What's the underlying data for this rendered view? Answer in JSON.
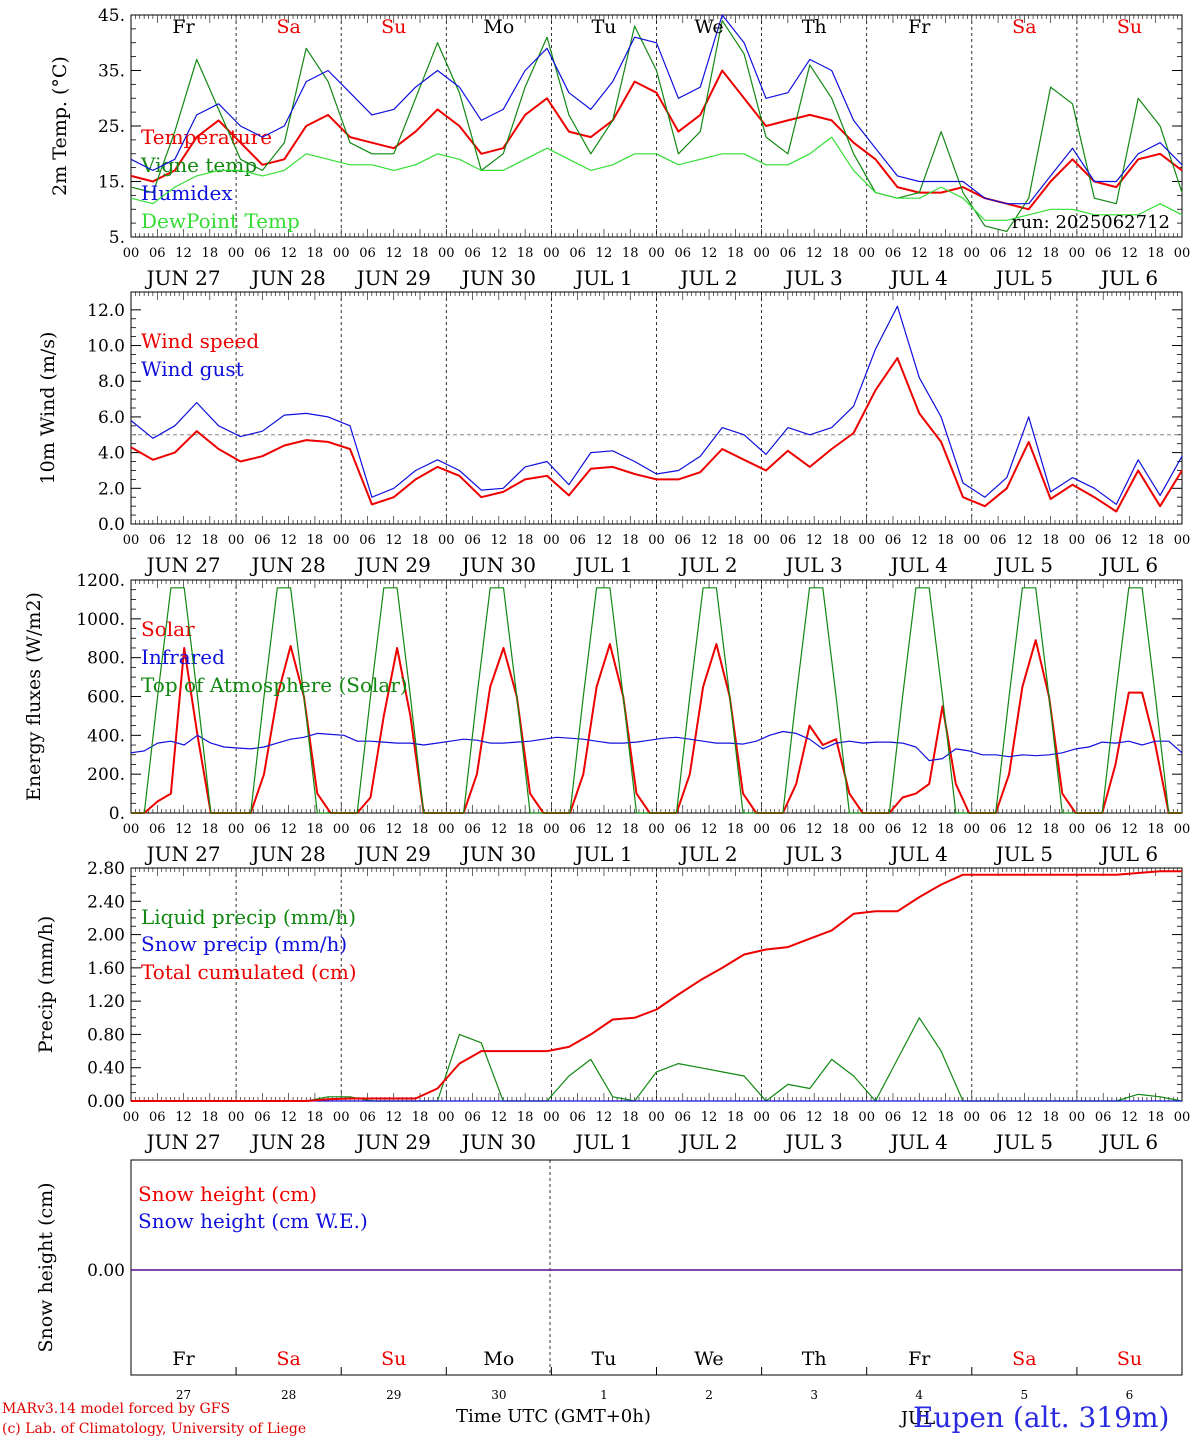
{
  "footer": {
    "credit_line1": "MARv3.14 model forced by GFS",
    "credit_line2": "(c) Lab. of Climatology, University of Liege",
    "x_title": "Time UTC (GMT+0h)",
    "station": "Eupen (alt. 319m)",
    "month_label": "JUL"
  },
  "colors": {
    "red": "#ee0000",
    "blue": "#1010dd",
    "green": "#118811",
    "lightgreen": "#33dd33",
    "weekend": "#ee0000",
    "axis": "#000000"
  },
  "days": {
    "weekday": [
      "Fr",
      "Sa",
      "Su",
      "Mo",
      "Tu",
      "We",
      "Th",
      "Fr",
      "Sa",
      "Su"
    ],
    "weekend": [
      false,
      true,
      true,
      false,
      false,
      false,
      false,
      false,
      true,
      true
    ],
    "date_labels": [
      "JUN 27",
      "JUN 28",
      "JUN 29",
      "JUN 30",
      "JUL  1",
      "JUL  2",
      "JUL  3",
      "JUL  4",
      "JUL  5",
      "JUL  6"
    ],
    "day_numbers": [
      "27",
      "28",
      "29",
      "30",
      "1",
      "2",
      "3",
      "4",
      "5",
      "6"
    ],
    "hour_ticks": [
      "00",
      "06",
      "12",
      "18"
    ],
    "end_tick": "00"
  },
  "chart_data": [
    {
      "type": "line",
      "ylabel": "2m Temp. (°C)",
      "ylim": [
        5,
        45
      ],
      "yticks": [
        "5.",
        "15.",
        "25.",
        "35.",
        "45."
      ],
      "x_start": "2025-06-27 00",
      "x_step_hours": 6,
      "annotation": "run: 2025062712",
      "legend_placement": "left",
      "series": [
        {
          "name": "Temperature",
          "color": "#ee0000",
          "values": [
            16,
            15,
            17,
            23,
            26,
            22,
            18,
            19,
            25,
            27,
            23,
            22,
            21,
            24,
            28,
            25,
            20,
            21,
            27,
            30,
            24,
            23,
            26,
            33,
            31,
            24,
            27,
            35,
            30,
            25,
            26,
            27,
            26,
            22,
            19,
            14,
            13,
            13,
            14,
            12,
            11,
            10,
            15,
            19,
            15,
            14,
            19,
            20,
            17
          ]
        },
        {
          "name": "Vigne temp",
          "color": "#118811",
          "values": [
            14,
            13,
            24,
            37,
            28,
            19,
            17,
            22,
            39,
            33,
            22,
            20,
            20,
            30,
            40,
            31,
            17,
            20,
            32,
            41,
            27,
            20,
            26,
            43,
            35,
            20,
            24,
            44,
            38,
            23,
            20,
            36,
            30,
            20,
            13,
            12,
            13,
            24,
            13,
            7,
            6,
            12,
            32,
            29,
            12,
            11,
            30,
            25,
            13
          ]
        },
        {
          "name": "Humidex",
          "color": "#1010dd",
          "values": [
            19,
            17,
            19,
            27,
            29,
            25,
            23,
            25,
            33,
            35,
            31,
            27,
            28,
            32,
            35,
            32,
            26,
            28,
            35,
            39,
            31,
            28,
            33,
            41,
            40,
            30,
            32,
            45,
            40,
            30,
            31,
            37,
            35,
            26,
            21,
            16,
            15,
            15,
            15,
            12,
            11,
            11,
            16,
            21,
            15,
            15,
            20,
            22,
            18
          ]
        },
        {
          "name": "DewPoint Temp",
          "color": "#33dd33",
          "values": [
            12,
            11,
            14,
            16,
            17,
            17,
            16,
            17,
            20,
            19,
            18,
            18,
            17,
            18,
            20,
            19,
            17,
            17,
            19,
            21,
            19,
            17,
            18,
            20,
            20,
            18,
            19,
            20,
            20,
            18,
            18,
            20,
            23,
            17,
            13,
            12,
            12,
            14,
            12,
            8,
            8,
            9,
            10,
            10,
            9,
            9,
            9,
            11,
            9
          ]
        }
      ]
    },
    {
      "type": "line",
      "ylabel": "10m Wind (m/s)",
      "ylim": [
        0,
        13
      ],
      "yticks": [
        "0.0",
        "2.0",
        "4.0",
        "6.0",
        "8.0",
        "10.0",
        "12.0"
      ],
      "reference_line": 5,
      "x_start": "2025-06-27 00",
      "x_step_hours": 6,
      "legend_placement": "left",
      "series": [
        {
          "name": "Wind speed",
          "color": "#ee0000",
          "values": [
            4.3,
            3.6,
            4.0,
            5.2,
            4.2,
            3.5,
            3.8,
            4.4,
            4.7,
            4.6,
            4.2,
            1.1,
            1.5,
            2.5,
            3.2,
            2.7,
            1.5,
            1.8,
            2.5,
            2.7,
            1.6,
            3.1,
            3.2,
            2.8,
            2.5,
            2.5,
            2.9,
            4.2,
            3.6,
            3.0,
            4.1,
            3.2,
            4.2,
            5.1,
            7.5,
            9.3,
            6.2,
            4.6,
            1.5,
            1.0,
            2.0,
            4.6,
            1.4,
            2.2,
            1.5,
            0.7,
            3.0,
            1.0,
            3.0
          ]
        },
        {
          "name": "Wind gust",
          "color": "#1010dd",
          "values": [
            5.8,
            4.8,
            5.5,
            6.8,
            5.5,
            4.9,
            5.2,
            6.1,
            6.2,
            6.0,
            5.5,
            1.5,
            2.0,
            3.0,
            3.6,
            3.0,
            1.9,
            2.0,
            3.2,
            3.5,
            2.2,
            4.0,
            4.1,
            3.5,
            2.8,
            3.0,
            3.8,
            5.4,
            5.0,
            3.9,
            5.4,
            5.0,
            5.4,
            6.6,
            9.8,
            12.2,
            8.2,
            6.0,
            2.3,
            1.5,
            2.6,
            6.0,
            1.8,
            2.6,
            2.0,
            1.1,
            3.6,
            1.6,
            3.8
          ]
        }
      ]
    },
    {
      "type": "line",
      "ylabel": "Energy fluxes (W/m2)",
      "ylim": [
        0,
        1200
      ],
      "yticks": [
        "0.",
        "200.",
        "400.",
        "600.",
        "800.",
        "1000.",
        "1200."
      ],
      "x_start": "2025-06-27 00",
      "x_step_hours": 3,
      "legend_placement": "left",
      "series": [
        {
          "name": "Solar",
          "color": "#ee0000",
          "values": [
            0,
            0,
            60,
            100,
            850,
            400,
            0,
            0,
            0,
            0,
            200,
            600,
            860,
            600,
            100,
            0,
            0,
            0,
            80,
            500,
            850,
            500,
            0,
            0,
            0,
            0,
            200,
            650,
            850,
            600,
            100,
            0,
            0,
            0,
            200,
            650,
            870,
            600,
            100,
            0,
            0,
            0,
            200,
            650,
            870,
            600,
            100,
            0,
            0,
            0,
            150,
            450,
            350,
            380,
            100,
            0,
            0,
            0,
            80,
            100,
            150,
            550,
            150,
            0,
            0,
            0,
            200,
            650,
            890,
            600,
            100,
            0,
            0,
            0,
            250,
            620,
            620,
            350,
            0,
            0
          ]
        },
        {
          "name": "Infrared",
          "color": "#1010dd",
          "values": [
            310,
            320,
            360,
            370,
            350,
            400,
            360,
            340,
            335,
            330,
            340,
            360,
            380,
            390,
            410,
            405,
            400,
            370,
            370,
            365,
            360,
            360,
            350,
            360,
            370,
            380,
            375,
            360,
            360,
            365,
            370,
            380,
            390,
            385,
            380,
            370,
            360,
            360,
            365,
            375,
            385,
            390,
            380,
            370,
            360,
            360,
            355,
            370,
            400,
            420,
            410,
            380,
            330,
            360,
            370,
            360,
            365,
            365,
            360,
            340,
            270,
            280,
            330,
            320,
            300,
            300,
            290,
            300,
            295,
            300,
            310,
            330,
            340,
            365,
            360,
            370,
            350,
            370,
            370,
            310
          ]
        },
        {
          "name": "Top of Atmosphere (Solar)",
          "color": "#118811",
          "values": [
            0,
            0,
            600,
            1160,
            1160,
            600,
            0,
            0,
            0,
            0,
            600,
            1160,
            1160,
            600,
            0,
            0,
            0,
            0,
            600,
            1160,
            1160,
            600,
            0,
            0,
            0,
            0,
            600,
            1160,
            1160,
            600,
            0,
            0,
            0,
            0,
            600,
            1160,
            1160,
            600,
            0,
            0,
            0,
            0,
            600,
            1160,
            1160,
            600,
            0,
            0,
            0,
            0,
            600,
            1160,
            1160,
            600,
            0,
            0,
            0,
            0,
            600,
            1160,
            1160,
            600,
            0,
            0,
            0,
            0,
            600,
            1160,
            1160,
            600,
            0,
            0,
            0,
            0,
            600,
            1160,
            1160,
            600,
            0,
            0
          ]
        }
      ]
    },
    {
      "type": "line",
      "ylabel": "Precip (mm/h)",
      "ylim": [
        0,
        2.8
      ],
      "yticks": [
        "0.00",
        "0.40",
        "0.80",
        "1.20",
        "1.60",
        "2.00",
        "2.40",
        "2.80"
      ],
      "x_start": "2025-06-27 00",
      "x_step_hours": 6,
      "legend_placement": "left",
      "series": [
        {
          "name": "Liquid precip (mm/h)",
          "color": "#118811",
          "values": [
            0,
            0,
            0,
            0,
            0,
            0,
            0,
            0,
            0,
            0.05,
            0.05,
            0,
            0,
            0,
            0,
            0.8,
            0.7,
            0,
            0,
            0,
            0.3,
            0.5,
            0.05,
            0,
            0.35,
            0.45,
            0.4,
            0.35,
            0.3,
            0,
            0.2,
            0.15,
            0.5,
            0.3,
            0,
            0.5,
            1.0,
            0.6,
            0,
            0,
            0,
            0,
            0,
            0,
            0,
            0,
            0.08,
            0.05,
            0
          ]
        },
        {
          "name": "Snow precip (mm/h)",
          "color": "#1010dd",
          "values": [
            0,
            0,
            0,
            0,
            0,
            0,
            0,
            0,
            0,
            0,
            0,
            0,
            0,
            0,
            0,
            0,
            0,
            0,
            0,
            0,
            0,
            0,
            0,
            0,
            0,
            0,
            0,
            0,
            0,
            0,
            0,
            0,
            0,
            0,
            0,
            0,
            0,
            0,
            0,
            0,
            0,
            0,
            0,
            0,
            0,
            0,
            0,
            0,
            0
          ]
        },
        {
          "name": "Total cumulated (cm)",
          "color": "#ee0000",
          "values": [
            0,
            0,
            0,
            0,
            0,
            0,
            0,
            0,
            0,
            0.02,
            0.03,
            0.03,
            0.03,
            0.03,
            0.15,
            0.45,
            0.6,
            0.6,
            0.6,
            0.6,
            0.65,
            0.8,
            0.98,
            1.0,
            1.1,
            1.28,
            1.45,
            1.6,
            1.76,
            1.82,
            1.85,
            1.95,
            2.05,
            2.25,
            2.28,
            2.28,
            2.45,
            2.6,
            2.72,
            2.72,
            2.72,
            2.72,
            2.72,
            2.72,
            2.72,
            2.72,
            2.74,
            2.76,
            2.76
          ]
        }
      ]
    },
    {
      "type": "line",
      "ylabel": "Snow height (cm)",
      "yticks": [
        "0.00"
      ],
      "legend_placement": "left",
      "series": [
        {
          "name": "Snow height (cm)",
          "color": "#ee0000",
          "values": [
            0,
            0
          ]
        },
        {
          "name": "Snow height (cm W.E.)",
          "color": "#1010dd",
          "values": [
            0,
            0
          ]
        }
      ]
    }
  ]
}
